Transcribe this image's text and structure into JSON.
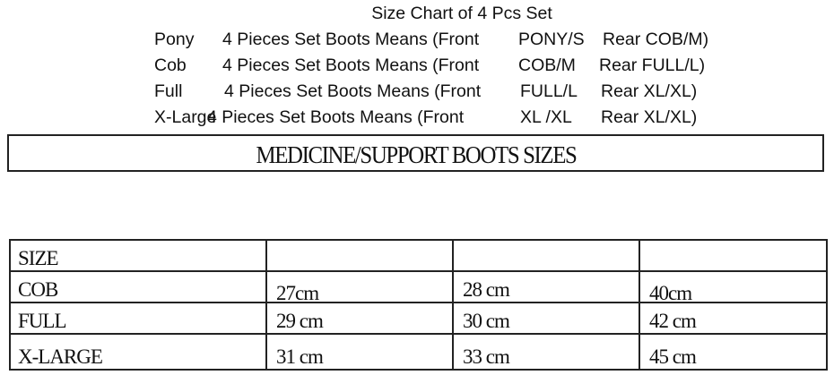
{
  "header": {
    "title": "Size Chart of 4 Pcs Set",
    "sets": [
      {
        "name": "Pony",
        "desc": "4 Pieces Set Boots Means (Front",
        "front": "PONY/S",
        "rear": "Rear COB/M)"
      },
      {
        "name": "Cob",
        "desc": "4 Pieces Set Boots Means (Front",
        "front": "COB/M",
        "rear": "Rear FULL/L)"
      },
      {
        "name": "Full",
        "desc": "4 Pieces Set Boots Means (Front",
        "front": "FULL/L",
        "rear": "Rear XL/XL)"
      },
      {
        "name": "X-Large",
        "desc": "4 Pieces Set Boots Means (Front",
        "front": "XL /XL",
        "rear": "Rear XL/XL)"
      }
    ]
  },
  "banner": "MEDICINE/SUPPORT BOOTS SIZES",
  "table": {
    "header": [
      "SIZE",
      "",
      "",
      ""
    ],
    "rows": [
      [
        "COB",
        "27cm",
        "28 cm",
        "40cm"
      ],
      [
        "FULL",
        "29 cm",
        "30 cm",
        "42 cm"
      ],
      [
        "X-LARGE",
        "31 cm",
        "33 cm",
        "45 cm"
      ]
    ]
  }
}
